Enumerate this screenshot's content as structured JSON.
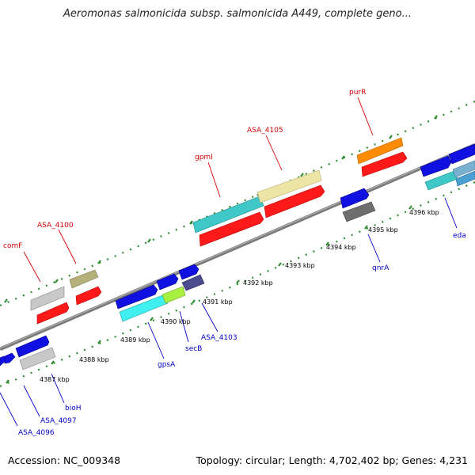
{
  "title": "Aeromonas salmonicida subsp. salmonicida A449, complete geno...",
  "footer": {
    "accession": "Accession: NC_009348",
    "stats": "Topology: circular; Length: 4,702,402 bp; Genes: 4,231"
  },
  "colors": {
    "backbone": "#8c8c8c",
    "dots": "#2e8b2e",
    "label_red": "#d40000",
    "label_blue": "#0000c8"
  },
  "ticks": [
    "4387 kbp",
    "4388 kbp",
    "4389 kbp",
    "4390 kbp",
    "4391 kbp",
    "4392 kbp",
    "4393 kbp",
    "4394 kbp",
    "4395 kbp",
    "4396 kbp"
  ],
  "labels_red": [
    "comF",
    "ASA_4100",
    "gpmI",
    "ASA_4105",
    "purR"
  ],
  "labels_blue": [
    "ASA_4096",
    "ASA_4097",
    "bioH",
    "gpsA",
    "secB",
    "ASA_4103",
    "qnrA",
    "eda"
  ]
}
